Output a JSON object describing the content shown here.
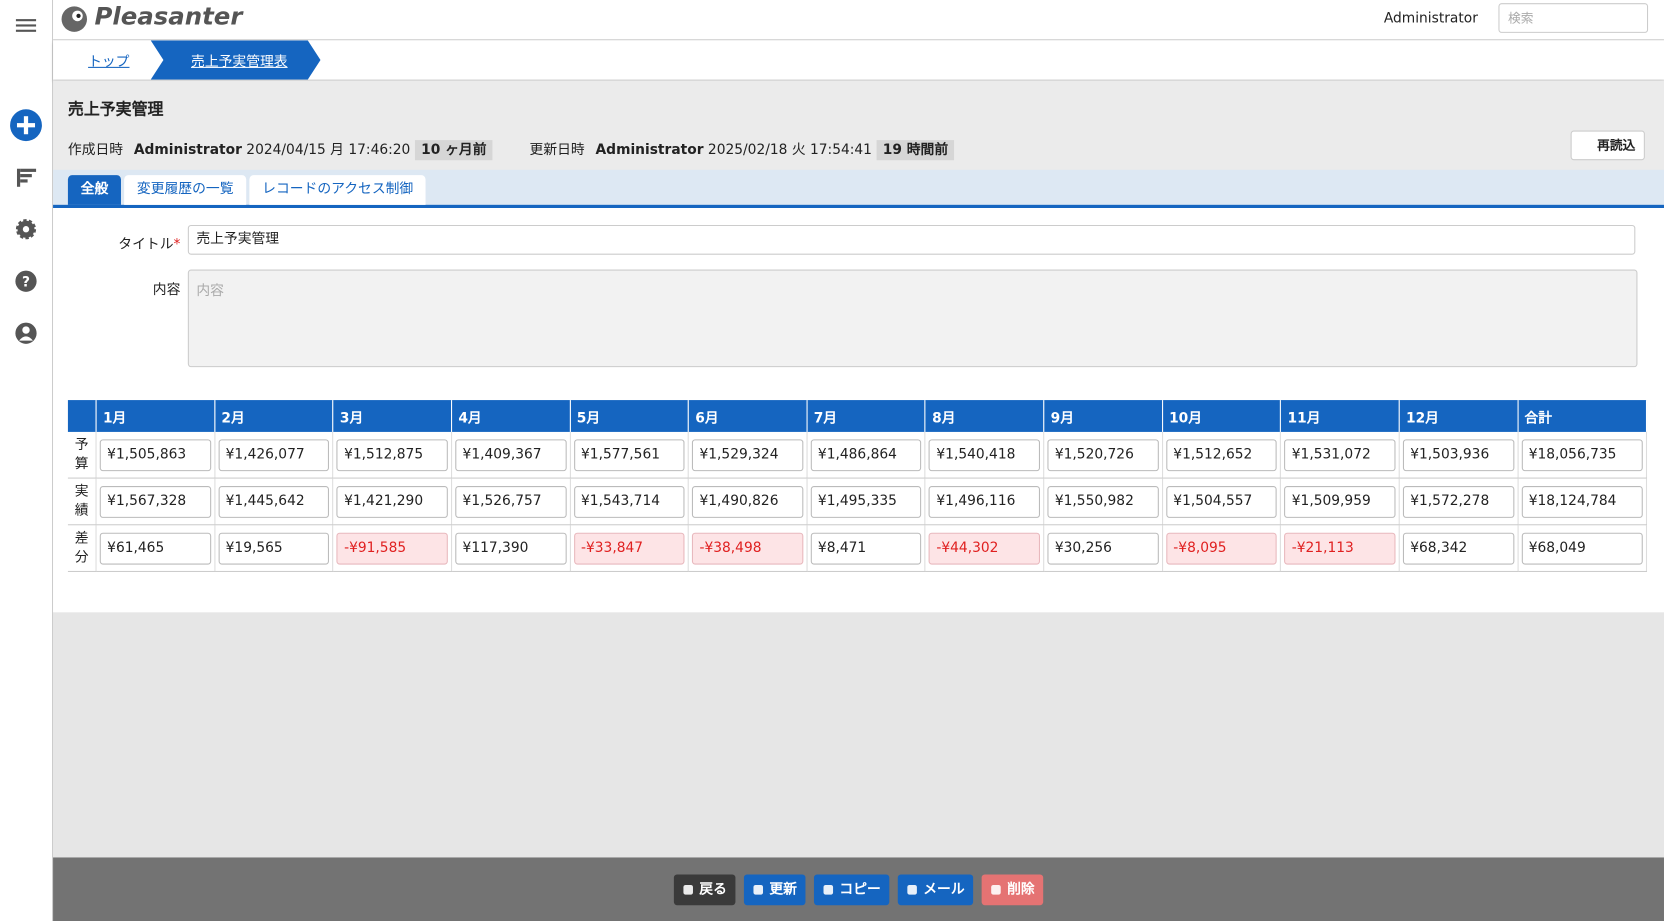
{
  "header": {
    "logo": "Pleasanter",
    "user": "Administrator",
    "search_placeholder": "検索"
  },
  "breadcrumb": [
    "トップ",
    "売上予実管理表"
  ],
  "record": {
    "title": "売上予実管理",
    "created_label": "作成日時",
    "created_by": "Administrator",
    "created_at": "2024/04/15 月 17:46:20",
    "created_ago": "10 ヶ月前",
    "updated_label": "更新日時",
    "updated_by": "Administrator",
    "updated_at": "2025/02/18 火 17:54:41",
    "updated_ago": "19 時間前",
    "reload": "再読込"
  },
  "tabs": [
    "全般",
    "変更履歴の一覧",
    "レコードのアクセス制御"
  ],
  "form": {
    "title_label": "タイトル",
    "required_mark": "*",
    "title_value": "売上予実管理",
    "body_label": "内容",
    "body_placeholder": "内容"
  },
  "table": {
    "columns": [
      "1月",
      "2月",
      "3月",
      "4月",
      "5月",
      "6月",
      "7月",
      "8月",
      "9月",
      "10月",
      "11月",
      "12月",
      "合計"
    ],
    "rows": [
      {
        "label": "予算",
        "cells": [
          "¥1,505,863",
          "¥1,426,077",
          "¥1,512,875",
          "¥1,409,367",
          "¥1,577,561",
          "¥1,529,324",
          "¥1,486,864",
          "¥1,540,418",
          "¥1,520,726",
          "¥1,512,652",
          "¥1,531,072",
          "¥1,503,936",
          "¥18,056,735"
        ]
      },
      {
        "label": "実績",
        "cells": [
          "¥1,567,328",
          "¥1,445,642",
          "¥1,421,290",
          "¥1,526,757",
          "¥1,543,714",
          "¥1,490,826",
          "¥1,495,335",
          "¥1,496,116",
          "¥1,550,982",
          "¥1,504,557",
          "¥1,509,959",
          "¥1,572,278",
          "¥18,124,784"
        ]
      },
      {
        "label": "差分",
        "cells": [
          "¥61,465",
          "¥19,565",
          "-¥91,585",
          "¥117,390",
          "-¥33,847",
          "-¥38,498",
          "¥8,471",
          "-¥44,302",
          "¥30,256",
          "-¥8,095",
          "-¥21,113",
          "¥68,342",
          "¥68,049"
        ]
      }
    ]
  },
  "footer": [
    "戻る",
    "更新",
    "コピー",
    "メール",
    "削除"
  ]
}
